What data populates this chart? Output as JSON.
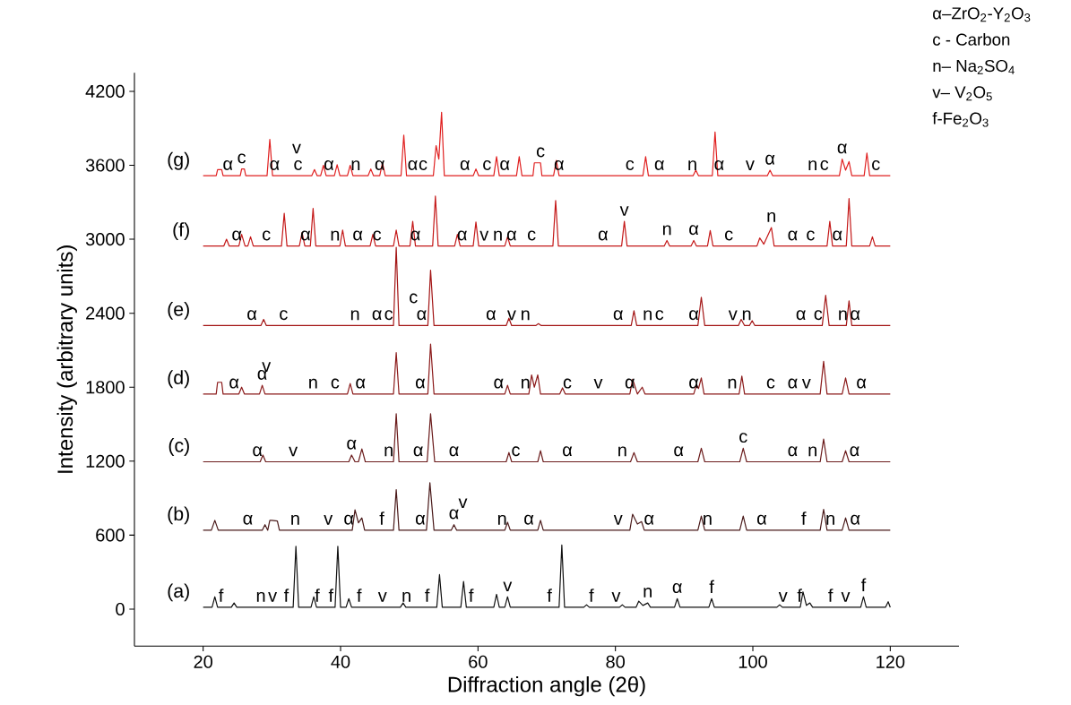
{
  "chart_data": {
    "type": "line",
    "xlabel": "Diffraction angle (2θ)",
    "ylabel": "Intensity (arbitrary units)",
    "xlim": [
      10,
      130
    ],
    "ylim": [
      -300,
      4350
    ],
    "xticks": [
      20,
      40,
      60,
      80,
      100,
      120
    ],
    "yticks": [
      0,
      600,
      1200,
      1800,
      2400,
      3000,
      3600,
      4200
    ],
    "series": [
      {
        "name": "(a)",
        "color": "#111111",
        "x": [
          20,
          21.3,
          21.7,
          22.1,
          24.1,
          24.5,
          24.9,
          33.1,
          33.5,
          33.9,
          35.7,
          36.1,
          36.5,
          39.2,
          39.6,
          40.0,
          40.8,
          41.2,
          41.6,
          48.7,
          49.1,
          49.5,
          54.0,
          54.4,
          54.8,
          57.5,
          57.9,
          58.3,
          62.3,
          62.7,
          63.1,
          63.9,
          64.3,
          64.7,
          71.8,
          72.2,
          72.6,
          75.4,
          75.8,
          76.2,
          80.6,
          81.0,
          81.4,
          83.0,
          83.4,
          84.0,
          84.7,
          85.1,
          88.6,
          89.0,
          89.4,
          93.6,
          94.0,
          94.4,
          103.5,
          103.9,
          104.3,
          106.9,
          107.3,
          107.8,
          108.3,
          108.7,
          115.7,
          116.1,
          116.5,
          119.3,
          119.7,
          120
        ],
        "values": [
          15,
          15,
          100,
          15,
          15,
          50,
          15,
          15,
          510,
          15,
          15,
          100,
          15,
          15,
          510,
          15,
          15,
          85,
          15,
          15,
          50,
          15,
          15,
          280,
          15,
          15,
          225,
          15,
          15,
          120,
          15,
          15,
          100,
          15,
          15,
          520,
          15,
          15,
          35,
          15,
          15,
          35,
          15,
          15,
          65,
          30,
          50,
          15,
          15,
          85,
          15,
          15,
          85,
          15,
          15,
          35,
          15,
          15,
          140,
          30,
          50,
          15,
          15,
          100,
          15,
          15,
          60,
          15
        ]
      },
      {
        "name": "(b)",
        "color": "#4a1a1a",
        "x": [
          20,
          21.2,
          21.7,
          22.2,
          28.6,
          29.0,
          29.4,
          29.7,
          30.0,
          30.8,
          31.1,
          41.7,
          42.1,
          42.6,
          43.1,
          43.5,
          47.7,
          48.1,
          48.5,
          52.5,
          53.0,
          53.6,
          56.1,
          56.5,
          56.9,
          63.9,
          64.3,
          64.7,
          68.7,
          69.1,
          69.5,
          82.1,
          82.5,
          83.2,
          83.8,
          84.2,
          92.0,
          92.5,
          93.0,
          98.1,
          98.6,
          99.1,
          109.8,
          110.3,
          110.8,
          113.0,
          113.5,
          114.0,
          120
        ],
        "values": [
          640,
          640,
          720,
          640,
          640,
          685,
          640,
          720,
          720,
          715,
          640,
          640,
          805,
          700,
          740,
          640,
          640,
          970,
          640,
          640,
          1025,
          640,
          640,
          685,
          640,
          640,
          705,
          640,
          640,
          720,
          640,
          640,
          770,
          690,
          710,
          640,
          640,
          755,
          640,
          640,
          755,
          640,
          640,
          810,
          640,
          640,
          740,
          640,
          640
        ]
      },
      {
        "name": "(c)",
        "color": "#6b1c1c",
        "x": [
          20,
          28.3,
          28.7,
          29.1,
          41.2,
          41.6,
          42.1,
          42.6,
          43.1,
          43.6,
          47.7,
          48.1,
          48.5,
          52.6,
          53.1,
          53.7,
          64.1,
          64.5,
          64.9,
          68.7,
          69.1,
          69.5,
          82.2,
          82.7,
          83.2,
          92.0,
          92.5,
          93.0,
          98.1,
          98.6,
          99.1,
          109.8,
          110.3,
          110.8,
          113.0,
          113.5,
          114.0,
          120
        ],
        "values": [
          1195,
          1195,
          1250,
          1195,
          1195,
          1250,
          1195,
          1195,
          1300,
          1195,
          1195,
          1585,
          1195,
          1195,
          1585,
          1195,
          1195,
          1270,
          1195,
          1195,
          1285,
          1195,
          1195,
          1270,
          1195,
          1195,
          1305,
          1195,
          1195,
          1305,
          1195,
          1195,
          1380,
          1195,
          1195,
          1285,
          1195,
          1195
        ]
      },
      {
        "name": "(d)",
        "color": "#8b1a1a",
        "x": [
          20,
          21.9,
          22.1,
          22.7,
          22.9,
          25.2,
          25.6,
          26.0,
          28.2,
          28.6,
          29.0,
          41.0,
          41.4,
          41.8,
          47.7,
          48.1,
          48.5,
          52.7,
          53.1,
          53.6,
          63.9,
          64.3,
          64.7,
          67.4,
          67.8,
          68.2,
          68.7,
          69.1,
          71.9,
          72.3,
          72.7,
          82.1,
          82.5,
          83.2,
          83.9,
          84.3,
          91.4,
          91.8,
          92.1,
          92.5,
          92.9,
          98.0,
          98.4,
          98.8,
          109.8,
          110.3,
          110.8,
          113.0,
          113.5,
          114.0,
          120
        ],
        "values": [
          1745,
          1745,
          1840,
          1840,
          1745,
          1745,
          1800,
          1745,
          1745,
          1815,
          1745,
          1745,
          1830,
          1745,
          1745,
          2080,
          1745,
          1745,
          2150,
          1745,
          1745,
          1815,
          1745,
          1745,
          1900,
          1800,
          1900,
          1745,
          1745,
          1795,
          1745,
          1745,
          1865,
          1745,
          1800,
          1745,
          1745,
          1820,
          1790,
          1875,
          1745,
          1745,
          1890,
          1745,
          1745,
          2010,
          1745,
          1745,
          1875,
          1745,
          1745
        ]
      },
      {
        "name": "(e)",
        "color": "#a31515",
        "x": [
          20,
          28.4,
          28.8,
          29.2,
          47.7,
          48.1,
          48.5,
          52.7,
          53.1,
          53.6,
          64.1,
          64.5,
          64.9,
          68.4,
          68.8,
          69.2,
          82.3,
          82.7,
          83.1,
          92.0,
          92.5,
          93.0,
          97.9,
          98.3,
          98.8,
          99.5,
          99.9,
          100.3,
          110.1,
          110.6,
          111.1,
          113.6,
          114.0,
          114.4,
          120
        ],
        "values": [
          2300,
          2300,
          2350,
          2300,
          2300,
          2935,
          2300,
          2300,
          2750,
          2300,
          2300,
          2360,
          2300,
          2300,
          2315,
          2300,
          2300,
          2420,
          2300,
          2300,
          2530,
          2300,
          2300,
          2350,
          2300,
          2300,
          2340,
          2300,
          2300,
          2545,
          2300,
          2300,
          2500,
          2300,
          2300
        ]
      },
      {
        "name": "(f)",
        "color": "#c41818",
        "x": [
          20,
          23.0,
          23.4,
          23.8,
          25.2,
          25.6,
          26.1,
          26.5,
          26.9,
          27.3,
          31.4,
          31.8,
          32.2,
          34.0,
          34.4,
          34.8,
          35.6,
          36.0,
          36.4,
          39.9,
          40.3,
          40.7,
          44.3,
          44.7,
          45.1,
          47.7,
          48.1,
          48.5,
          50.1,
          50.5,
          50.9,
          53.4,
          53.8,
          54.2,
          56.6,
          57.0,
          57.4,
          59.3,
          59.7,
          60.1,
          63.9,
          64.3,
          64.7,
          70.9,
          71.3,
          71.7,
          80.9,
          81.3,
          81.7,
          87.1,
          87.5,
          87.9,
          91.0,
          91.4,
          91.8,
          93.4,
          93.8,
          94.2,
          100.6,
          101.0,
          101.6,
          102.7,
          103.1,
          110.8,
          111.2,
          111.6,
          113.6,
          114.0,
          114.4,
          117.0,
          117.4,
          117.8,
          120
        ],
        "values": [
          2945,
          2945,
          3000,
          2945,
          2945,
          3040,
          2945,
          2945,
          3020,
          2945,
          2945,
          3210,
          2945,
          2945,
          3055,
          2945,
          2945,
          3250,
          2945,
          2945,
          3075,
          2945,
          2945,
          3040,
          2945,
          2945,
          3075,
          2945,
          2945,
          3145,
          2945,
          2945,
          3350,
          2945,
          2945,
          3040,
          2945,
          2945,
          3140,
          2945,
          2945,
          3020,
          2945,
          2945,
          3315,
          2945,
          2945,
          3145,
          2945,
          2945,
          2990,
          2945,
          2945,
          2990,
          2945,
          2945,
          3070,
          2945,
          2945,
          3010,
          2960,
          3095,
          2945,
          2945,
          3145,
          2945,
          2945,
          3330,
          2945,
          2945,
          3020,
          2945,
          2945
        ]
      },
      {
        "name": "(g)",
        "color": "#e02020",
        "x": [
          20,
          21.9,
          22.1,
          22.7,
          22.9,
          25.4,
          25.6,
          26.0,
          26.2,
          29.3,
          29.7,
          30.1,
          35.8,
          36.2,
          36.6,
          37.1,
          37.5,
          37.9,
          39.1,
          39.5,
          39.9,
          41.0,
          41.4,
          41.8,
          44.0,
          44.4,
          44.8,
          45.7,
          46.1,
          46.5,
          48.8,
          49.2,
          49.6,
          53.5,
          53.9,
          54.3,
          54.7,
          55.1,
          59.3,
          59.7,
          60.1,
          62.3,
          62.7,
          63.1,
          65.6,
          66.0,
          66.4,
          68.0,
          68.2,
          69.1,
          69.3,
          71.0,
          71.4,
          71.8,
          84.0,
          84.4,
          84.8,
          91.3,
          91.7,
          92.1,
          94.1,
          94.5,
          94.9,
          102.1,
          102.5,
          102.9,
          112.6,
          113.0,
          113.5,
          114.0,
          114.4,
          116.2,
          116.6,
          117.0,
          120
        ],
        "values": [
          3515,
          3515,
          3565,
          3565,
          3515,
          3515,
          3570,
          3570,
          3515,
          3515,
          3810,
          3515,
          3515,
          3565,
          3515,
          3515,
          3600,
          3515,
          3515,
          3605,
          3515,
          3515,
          3600,
          3515,
          3515,
          3570,
          3515,
          3515,
          3620,
          3515,
          3515,
          3845,
          3515,
          3515,
          3760,
          3650,
          4030,
          3515,
          3515,
          3570,
          3515,
          3515,
          3670,
          3515,
          3515,
          3670,
          3515,
          3515,
          3620,
          3620,
          3515,
          3515,
          3640,
          3515,
          3515,
          3670,
          3515,
          3515,
          3560,
          3515,
          3515,
          3870,
          3515,
          3515,
          3560,
          3515,
          3515,
          3650,
          3560,
          3630,
          3515,
          3515,
          3700,
          3515,
          3515
        ]
      }
    ],
    "annotations": [
      "α–ZrO$_{2}$-Y$_{2}$O$_{3}$",
      "c - Carbon",
      "n– Na$_{2}$SO$_{4}$",
      "v– V$_{2}$O$_{5}$",
      "f-Fe$_{2}$O$_{3}$",
      {
        "text": "α",
        "x": 23.6,
        "y": 3515
      },
      {
        "text": "c",
        "x": 25.6,
        "y": 3570
      },
      {
        "text": "α",
        "x": 30.4,
        "y": 3515
      },
      {
        "text": "c",
        "x": 33.8,
        "y": 3515
      },
      {
        "text": "v",
        "x": 33.6,
        "y": 3515
      },
      {
        "text": "α",
        "x": 38.3,
        "y": 3515
      },
      {
        "text": "n",
        "x": 42.2,
        "y": 3515
      },
      {
        "text": "α",
        "x": 45.7,
        "y": 3515
      },
      {
        "text": "α",
        "x": 50.5,
        "y": 3515
      },
      {
        "text": "c",
        "x": 52.0,
        "y": 3515
      },
      {
        "text": "α",
        "x": 58.1,
        "y": 3515
      },
      {
        "text": "c",
        "x": 61.3,
        "y": 3515
      },
      {
        "text": "α",
        "x": 63.9,
        "y": 3515
      },
      {
        "text": "c",
        "x": 69.1,
        "y": 3620
      },
      {
        "text": "α",
        "x": 71.8,
        "y": 3515
      },
      {
        "text": "c",
        "x": 82.1,
        "y": 3515
      },
      {
        "text": "α",
        "x": 86.4,
        "y": 3515
      },
      {
        "text": "n",
        "x": 91.2,
        "y": 3515
      },
      {
        "text": "α",
        "x": 95.1,
        "y": 3515
      },
      {
        "text": "v",
        "x": 99.6,
        "y": 3515
      },
      {
        "text": "α",
        "x": 102.5,
        "y": 3560
      },
      {
        "text": "n",
        "x": 108.7,
        "y": 3515
      },
      {
        "text": "c",
        "x": 110.4,
        "y": 3515
      },
      {
        "text": "α",
        "x": 113.0,
        "y": 3650
      },
      {
        "text": "c",
        "x": 117.9,
        "y": 3515
      },
      {
        "text": "α",
        "x": 24.9,
        "y": 2945
      },
      {
        "text": "c",
        "x": 29.2,
        "y": 2945
      },
      {
        "text": "α",
        "x": 34.9,
        "y": 2945
      },
      {
        "text": "n",
        "x": 39.2,
        "y": 2945
      },
      {
        "text": "α",
        "x": 42.5,
        "y": 2945
      },
      {
        "text": "c",
        "x": 45.3,
        "y": 2945
      },
      {
        "text": "α",
        "x": 50.9,
        "y": 2945
      },
      {
        "text": "α",
        "x": 57.7,
        "y": 2945
      },
      {
        "text": "v",
        "x": 60.9,
        "y": 2945
      },
      {
        "text": "n",
        "x": 62.9,
        "y": 2945
      },
      {
        "text": "α",
        "x": 64.9,
        "y": 2945
      },
      {
        "text": "c",
        "x": 67.8,
        "y": 2945
      },
      {
        "text": "α",
        "x": 78.2,
        "y": 2945
      },
      {
        "text": "v",
        "x": 81.3,
        "y": 3145
      },
      {
        "text": "n",
        "x": 87.5,
        "y": 2990
      },
      {
        "text": "α",
        "x": 91.4,
        "y": 2990
      },
      {
        "text": "c",
        "x": 96.5,
        "y": 2945
      },
      {
        "text": "n",
        "x": 102.7,
        "y": 3095
      },
      {
        "text": "α",
        "x": 105.8,
        "y": 2945
      },
      {
        "text": "c",
        "x": 108.4,
        "y": 2945
      },
      {
        "text": "α",
        "x": 112.3,
        "y": 2945
      },
      {
        "text": "α",
        "x": 27.1,
        "y": 2300
      },
      {
        "text": "c",
        "x": 31.7,
        "y": 2300
      },
      {
        "text": "n",
        "x": 42.1,
        "y": 2300
      },
      {
        "text": "α",
        "x": 45.3,
        "y": 2300
      },
      {
        "text": "c",
        "x": 47.0,
        "y": 2300
      },
      {
        "text": "α",
        "x": 51.8,
        "y": 2300
      },
      {
        "text": "c",
        "x": 50.6,
        "y": 2300
      },
      {
        "text": "α",
        "x": 61.9,
        "y": 2300
      },
      {
        "text": "v",
        "x": 64.9,
        "y": 2300
      },
      {
        "text": "n",
        "x": 66.9,
        "y": 2300
      },
      {
        "text": "α",
        "x": 80.4,
        "y": 2300
      },
      {
        "text": "n",
        "x": 84.7,
        "y": 2300
      },
      {
        "text": "c",
        "x": 86.4,
        "y": 2300
      },
      {
        "text": "α",
        "x": 91.4,
        "y": 2300
      },
      {
        "text": "v",
        "x": 97.1,
        "y": 2300
      },
      {
        "text": "n",
        "x": 99.1,
        "y": 2300
      },
      {
        "text": "α",
        "x": 107.0,
        "y": 2300
      },
      {
        "text": "c",
        "x": 109.5,
        "y": 2300
      },
      {
        "text": "n",
        "x": 113.1,
        "y": 2300
      },
      {
        "text": "α",
        "x": 114.9,
        "y": 2300
      },
      {
        "text": "α",
        "x": 24.5,
        "y": 1745
      },
      {
        "text": "α",
        "x": 28.6,
        "y": 1815
      },
      {
        "text": "v",
        "x": 29.2,
        "y": 1745
      },
      {
        "text": "n",
        "x": 36.0,
        "y": 1745
      },
      {
        "text": "c",
        "x": 39.2,
        "y": 1745
      },
      {
        "text": "α",
        "x": 42.9,
        "y": 1745
      },
      {
        "text": "α",
        "x": 51.6,
        "y": 1745
      },
      {
        "text": "α",
        "x": 63.0,
        "y": 1745
      },
      {
        "text": "n",
        "x": 66.9,
        "y": 1745
      },
      {
        "text": "c",
        "x": 73.0,
        "y": 1745
      },
      {
        "text": "v",
        "x": 77.5,
        "y": 1745
      },
      {
        "text": "α",
        "x": 82.1,
        "y": 1745
      },
      {
        "text": "α",
        "x": 91.4,
        "y": 1745
      },
      {
        "text": "n",
        "x": 97.0,
        "y": 1745
      },
      {
        "text": "c",
        "x": 102.6,
        "y": 1745
      },
      {
        "text": "α",
        "x": 105.8,
        "y": 1745
      },
      {
        "text": "v",
        "x": 107.8,
        "y": 1745
      },
      {
        "text": "α",
        "x": 115.8,
        "y": 1745
      },
      {
        "text": "α",
        "x": 27.9,
        "y": 1195
      },
      {
        "text": "v",
        "x": 33.1,
        "y": 1195
      },
      {
        "text": "α",
        "x": 41.6,
        "y": 1250
      },
      {
        "text": "n",
        "x": 47.0,
        "y": 1195
      },
      {
        "text": "α",
        "x": 51.3,
        "y": 1195
      },
      {
        "text": "α",
        "x": 56.5,
        "y": 1195
      },
      {
        "text": "c",
        "x": 65.5,
        "y": 1195
      },
      {
        "text": "α",
        "x": 73.0,
        "y": 1195
      },
      {
        "text": "n",
        "x": 81.0,
        "y": 1195
      },
      {
        "text": "α",
        "x": 89.2,
        "y": 1195
      },
      {
        "text": "c",
        "x": 98.6,
        "y": 1305
      },
      {
        "text": "α",
        "x": 105.8,
        "y": 1195
      },
      {
        "text": "n",
        "x": 108.7,
        "y": 1195
      },
      {
        "text": "α",
        "x": 114.8,
        "y": 1195
      },
      {
        "text": "α",
        "x": 26.5,
        "y": 640
      },
      {
        "text": "n",
        "x": 33.4,
        "y": 640
      },
      {
        "text": "v",
        "x": 38.2,
        "y": 640
      },
      {
        "text": "α",
        "x": 41.2,
        "y": 640
      },
      {
        "text": "f",
        "x": 46.0,
        "y": 640
      },
      {
        "text": "α",
        "x": 51.6,
        "y": 640
      },
      {
        "text": "α",
        "x": 56.5,
        "y": 685
      },
      {
        "text": "v",
        "x": 57.8,
        "y": 640
      },
      {
        "text": "n",
        "x": 63.5,
        "y": 640
      },
      {
        "text": "α",
        "x": 67.4,
        "y": 640
      },
      {
        "text": "v",
        "x": 80.4,
        "y": 640
      },
      {
        "text": "α",
        "x": 84.9,
        "y": 640
      },
      {
        "text": "n",
        "x": 93.4,
        "y": 640
      },
      {
        "text": "α",
        "x": 101.3,
        "y": 640
      },
      {
        "text": "f",
        "x": 107.4,
        "y": 640
      },
      {
        "text": "n",
        "x": 111.3,
        "y": 640
      },
      {
        "text": "α",
        "x": 114.9,
        "y": 640
      },
      {
        "text": "f",
        "x": 22.6,
        "y": 15
      },
      {
        "text": "n",
        "x": 28.4,
        "y": 15
      },
      {
        "text": "v",
        "x": 30.1,
        "y": 15
      },
      {
        "text": "f",
        "x": 32.1,
        "y": 15
      },
      {
        "text": "f",
        "x": 36.6,
        "y": 15
      },
      {
        "text": "f",
        "x": 38.6,
        "y": 15
      },
      {
        "text": "f",
        "x": 42.7,
        "y": 15
      },
      {
        "text": "v",
        "x": 46.1,
        "y": 15
      },
      {
        "text": "n",
        "x": 49.6,
        "y": 15
      },
      {
        "text": "f",
        "x": 52.6,
        "y": 15
      },
      {
        "text": "f",
        "x": 59.0,
        "y": 15
      },
      {
        "text": "v",
        "x": 64.3,
        "y": 100
      },
      {
        "text": "f",
        "x": 70.4,
        "y": 15
      },
      {
        "text": "f",
        "x": 76.5,
        "y": 15
      },
      {
        "text": "v",
        "x": 80.1,
        "y": 15
      },
      {
        "text": "n",
        "x": 84.7,
        "y": 50
      },
      {
        "text": "α",
        "x": 89.0,
        "y": 85
      },
      {
        "text": "f",
        "x": 94.0,
        "y": 85
      },
      {
        "text": "v",
        "x": 104.4,
        "y": 15
      },
      {
        "text": "f",
        "x": 106.8,
        "y": 15
      },
      {
        "text": "f",
        "x": 111.3,
        "y": 15
      },
      {
        "text": "v",
        "x": 113.5,
        "y": 15
      },
      {
        "text": "f",
        "x": 116.1,
        "y": 100
      }
    ]
  }
}
